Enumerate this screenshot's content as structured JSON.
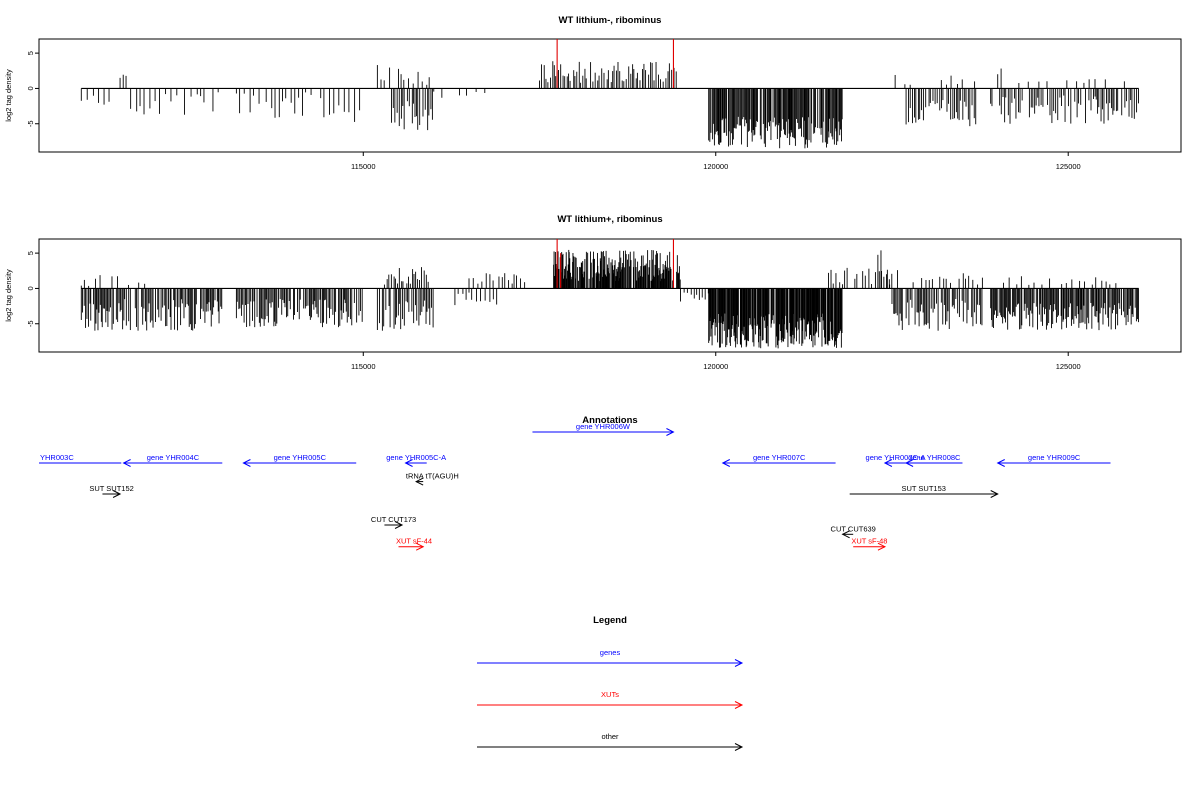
{
  "chart_data": [
    {
      "type": "bar",
      "title": "WT lithium-, ribominus",
      "xlabel": "",
      "ylabel": "log2 tag density",
      "xlim": [
        110400,
        126600
      ],
      "ylim": [
        -9,
        7
      ],
      "x_ticks": [
        115000,
        120000,
        125000
      ],
      "x_tick_labels": [
        "115000",
        "120000",
        "125000"
      ],
      "y_ticks": [
        5,
        0,
        -5
      ],
      "y_tick_labels": [
        "5",
        "0",
        "-5"
      ],
      "baseline": {
        "x": [
          111000,
          126000
        ],
        "y": 0
      },
      "highlight_color": "#e00000",
      "highlights": [
        {
          "x": 117750,
          "y": 7
        },
        {
          "x": 119400,
          "y": 7
        }
      ],
      "segments": [
        {
          "x": [
            111000,
            111500
          ],
          "step": 80,
          "range": [
            -2.5,
            -1
          ]
        },
        {
          "x": [
            111550,
            111650
          ],
          "step": 40,
          "range": [
            0.6,
            2
          ]
        },
        {
          "x": [
            111700,
            113000
          ],
          "step": 70,
          "range": [
            -4,
            -0.5
          ]
        },
        {
          "x": [
            113200,
            115000
          ],
          "step": 60,
          "range": [
            -5,
            -0.5
          ]
        },
        {
          "x": [
            115200,
            115400
          ],
          "step": 40,
          "range": [
            0.8,
            3.5
          ]
        },
        {
          "x": [
            115400,
            116000
          ],
          "step": 25,
          "range": [
            -6,
            -1
          ]
        },
        {
          "x": [
            115500,
            115950
          ],
          "step": 50,
          "range": [
            0.5,
            3
          ]
        },
        {
          "x": [
            116000,
            116800
          ],
          "step": 110,
          "range": [
            -1.5,
            -0.3
          ]
        },
        {
          "x": [
            117500,
            119500
          ],
          "step": 28,
          "range": [
            0.8,
            4
          ]
        },
        {
          "x": [
            119900,
            121800
          ],
          "step": 12,
          "range": [
            -8.5,
            -4
          ]
        },
        {
          "x": [
            122500,
            122800
          ],
          "step": 60,
          "range": [
            0.5,
            2.8
          ]
        },
        {
          "x": [
            122700,
            123700
          ],
          "step": 28,
          "range": [
            -5.5,
            -1.5
          ]
        },
        {
          "x": [
            123200,
            123700
          ],
          "step": 70,
          "range": [
            0.5,
            2
          ]
        },
        {
          "x": [
            124000,
            124100
          ],
          "step": 50,
          "range": [
            1,
            3
          ]
        },
        {
          "x": [
            123900,
            126000
          ],
          "step": 26,
          "range": [
            -5,
            -1
          ]
        },
        {
          "x": [
            124300,
            125800
          ],
          "step": 110,
          "range": [
            0.4,
            1.4
          ]
        }
      ]
    },
    {
      "type": "bar",
      "title": "WT lithium+, ribominus",
      "xlabel": "",
      "ylabel": "log2 tag density",
      "xlim": [
        110400,
        126600
      ],
      "ylim": [
        -9,
        7
      ],
      "x_ticks": [
        115000,
        120000,
        125000
      ],
      "x_tick_labels": [
        "115000",
        "120000",
        "125000"
      ],
      "y_ticks": [
        5,
        0,
        -5
      ],
      "y_tick_labels": [
        "5",
        "0",
        "-5"
      ],
      "baseline": {
        "x": [
          111000,
          126000
        ],
        "y": 0
      },
      "highlight_color": "#e00000",
      "highlights": [
        {
          "x": 117750,
          "y": 7
        },
        {
          "x": 117800,
          "y": 5
        },
        {
          "x": 119400,
          "y": 7
        }
      ],
      "segments": [
        {
          "x": [
            111000,
            111900
          ],
          "step": 70,
          "range": [
            0.3,
            2
          ]
        },
        {
          "x": [
            111000,
            113000
          ],
          "step": 18,
          "range": [
            -6,
            -1.5
          ]
        },
        {
          "x": [
            113200,
            115000
          ],
          "step": 18,
          "range": [
            -5.5,
            -1.5
          ]
        },
        {
          "x": [
            115200,
            116000
          ],
          "step": 22,
          "range": [
            -6,
            -1.5
          ]
        },
        {
          "x": [
            115300,
            115950
          ],
          "step": 30,
          "range": [
            0.5,
            3.2
          ]
        },
        {
          "x": [
            116300,
            116900
          ],
          "step": 50,
          "range": [
            -2.5,
            -0.5
          ]
        },
        {
          "x": [
            116500,
            117300
          ],
          "step": 45,
          "range": [
            0.5,
            2.2
          ]
        },
        {
          "x": [
            117700,
            119500
          ],
          "step": 9,
          "range": [
            1,
            5.5
          ]
        },
        {
          "x": [
            119500,
            119900
          ],
          "step": 40,
          "range": [
            -2,
            -0.5
          ]
        },
        {
          "x": [
            119900,
            121800
          ],
          "step": 9,
          "range": [
            -8.5,
            -3.5
          ]
        },
        {
          "x": [
            121600,
            122500
          ],
          "step": 40,
          "range": [
            0.5,
            3
          ]
        },
        {
          "x": [
            122300,
            122600
          ],
          "step": 50,
          "range": [
            1,
            5.5
          ]
        },
        {
          "x": [
            122500,
            123800
          ],
          "step": 20,
          "range": [
            -6,
            -1.5
          ]
        },
        {
          "x": [
            122800,
            123800
          ],
          "step": 50,
          "range": [
            0.5,
            2.5
          ]
        },
        {
          "x": [
            123900,
            126000
          ],
          "step": 14,
          "range": [
            -6,
            -2
          ]
        },
        {
          "x": [
            124000,
            125800
          ],
          "step": 80,
          "range": [
            0.5,
            2
          ]
        }
      ]
    }
  ],
  "annotations": {
    "title": "Annotations",
    "items": [
      {
        "label": "YHR003C",
        "kind": "gene",
        "x": [
          110400,
          111000
        ],
        "dir": "left",
        "label_x": 110830,
        "row": 0
      },
      {
        "label": "gene YHR004C",
        "kind": "gene",
        "x": [
          111600,
          113000
        ],
        "dir": "left",
        "label_x": 112300,
        "row": 0
      },
      {
        "label": "gene YHR005C",
        "kind": "gene",
        "x": [
          113300,
          114900
        ],
        "dir": "left",
        "label_x": 114100,
        "row": 0
      },
      {
        "label": "gene YHR005C-A",
        "kind": "gene",
        "x": [
          115600,
          115900
        ],
        "dir": "left",
        "label_x": 115750,
        "row": 0
      },
      {
        "label": "gene YHR006W",
        "kind": "gene",
        "x": [
          117400,
          119400
        ],
        "dir": "right",
        "label_x": 118400,
        "row": -1
      },
      {
        "label": "gene YHR007C",
        "kind": "gene",
        "x": [
          120100,
          121700
        ],
        "dir": "left",
        "label_x": 120900,
        "row": 0
      },
      {
        "label": "gene YHR007C-A",
        "kind": "gene",
        "x": [
          122400,
          122700
        ],
        "dir": "left",
        "label_x": 122550,
        "row": 0
      },
      {
        "label": "gene YHR008C",
        "kind": "gene",
        "x": [
          122700,
          123500
        ],
        "dir": "left",
        "label_x": 123100,
        "row": 0
      },
      {
        "label": "gene YHR009C",
        "kind": "gene",
        "x": [
          124000,
          125600
        ],
        "dir": "left",
        "label_x": 124800,
        "row": 0
      },
      {
        "label": "SUT SUT152",
        "kind": "other",
        "x": [
          111300,
          111550
        ],
        "dir": "right",
        "label_x": 111430,
        "row": 1
      },
      {
        "label": "tRNA tT(AGU)H",
        "kind": "other",
        "x": [
          115750,
          115850
        ],
        "dir": "left",
        "label_x": 115980,
        "row": 0.6
      },
      {
        "label": "SUT SUT153",
        "kind": "other",
        "x": [
          121900,
          124000
        ],
        "dir": "right",
        "label_x": 122950,
        "row": 1
      },
      {
        "label": "CUT CUT173",
        "kind": "other",
        "x": [
          115300,
          115550
        ],
        "dir": "right",
        "label_x": 115430,
        "row": 2
      },
      {
        "label": "CUT CUT639",
        "kind": "other",
        "x": [
          121800,
          121950
        ],
        "dir": "left",
        "label_x": 121950,
        "row": 2.3
      },
      {
        "label": "XUT sF-44",
        "kind": "xut",
        "x": [
          115500,
          115850
        ],
        "dir": "right",
        "label_x": 115720,
        "row": 2.7
      },
      {
        "label": "XUT sF-48",
        "kind": "xut",
        "x": [
          121950,
          122400
        ],
        "dir": "right",
        "label_x": 122180,
        "row": 2.7
      }
    ]
  },
  "legend": {
    "title": "Legend",
    "items": [
      {
        "label": "genes",
        "color": "#0000ff"
      },
      {
        "label": "XUTs",
        "color": "#ff0000"
      },
      {
        "label": "other",
        "color": "#000000"
      }
    ]
  },
  "colors": {
    "gene": "#0000ff",
    "xut": "#ff0000",
    "other": "#000000",
    "bar": "#000000",
    "text": "#000000"
  }
}
